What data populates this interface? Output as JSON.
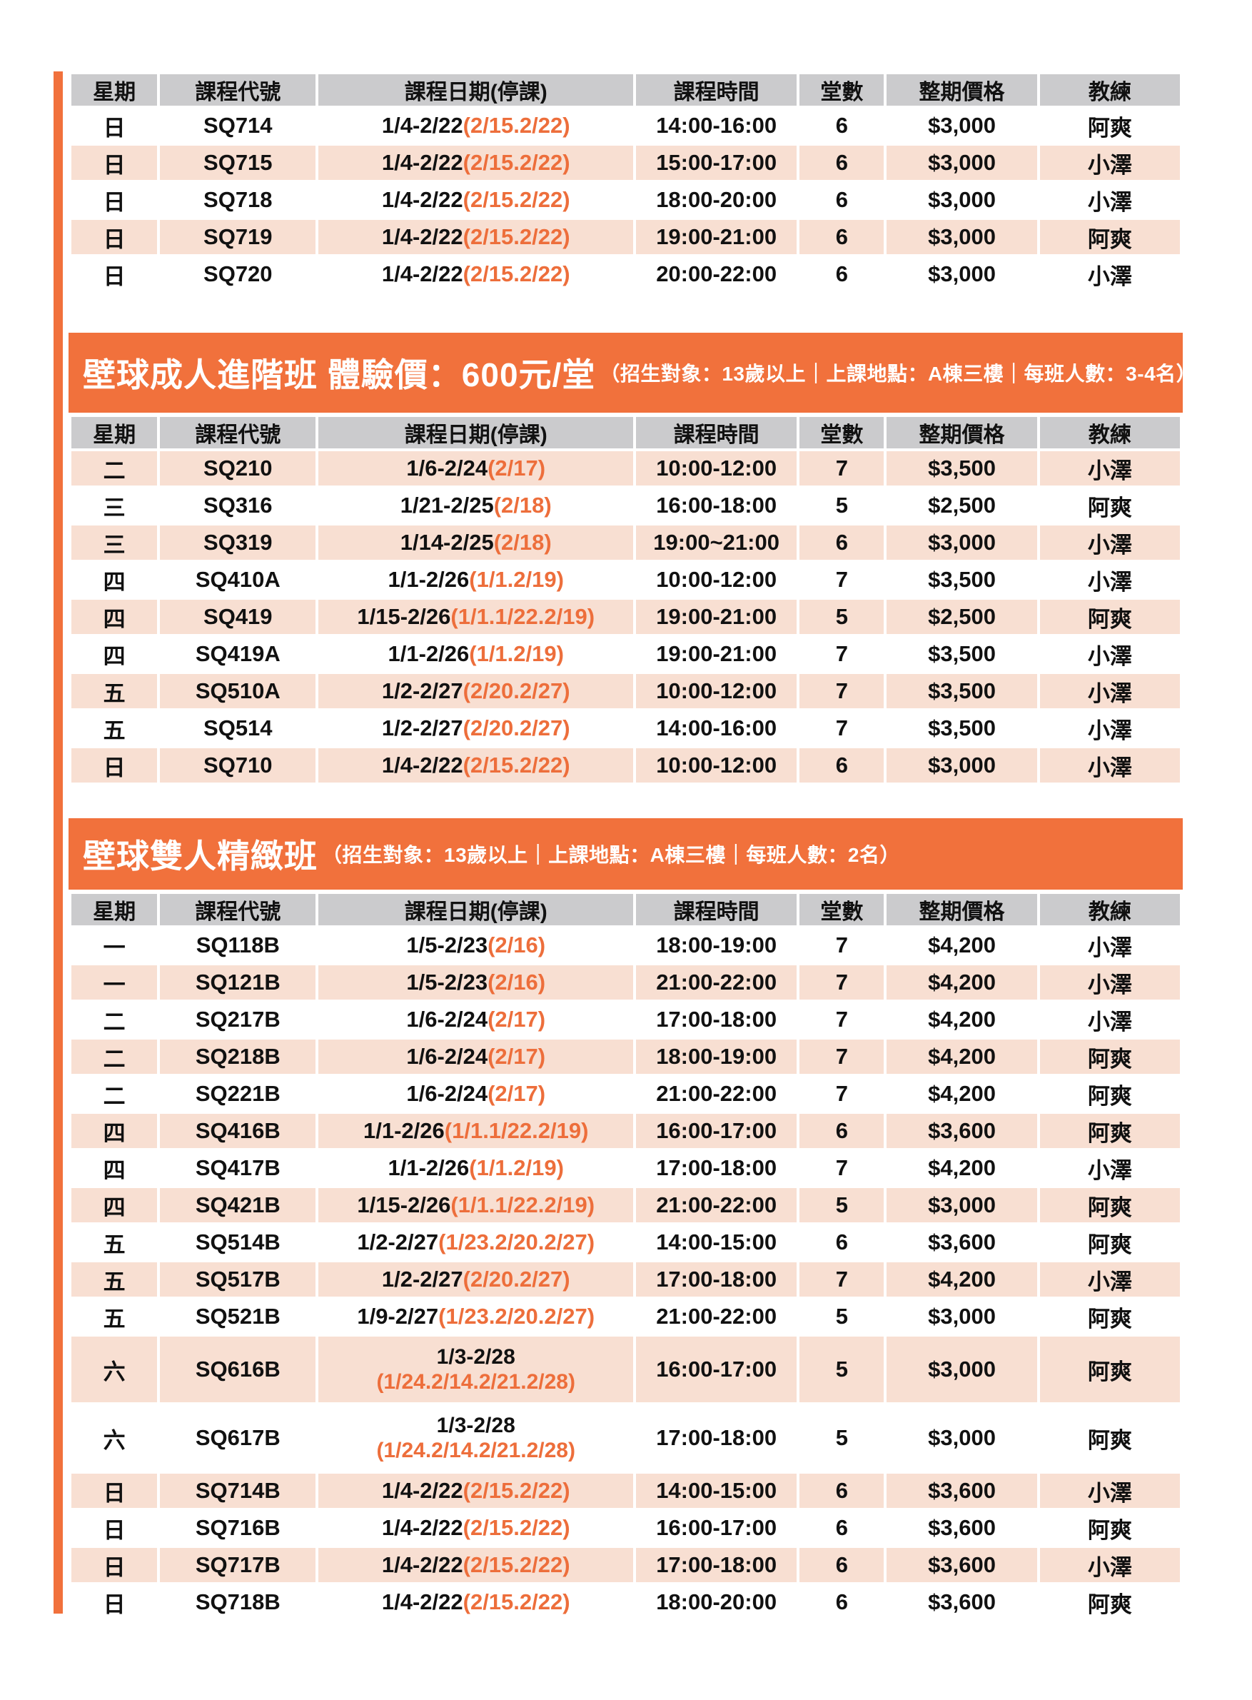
{
  "colors": {
    "banner_orange": "#F1713C",
    "accent_orange": "#ED6E3B",
    "row_pink": "#F8DFD2",
    "header_gray": "#CBCBCD",
    "left_bar_orange": "#F1713C"
  },
  "columns": [
    "星期",
    "課程代號",
    "課程日期(停課)",
    "課程時間",
    "堂數",
    "整期價格",
    "教練"
  ],
  "sections": [
    {
      "banner": null,
      "first_row_pink": false,
      "rows": [
        {
          "day": "日",
          "code": "SQ714",
          "date": "1/4-2/22",
          "cancel": "(2/15.2/22)",
          "time": "14:00-16:00",
          "sessions": "6",
          "price": "$3,000",
          "coach": "阿爽",
          "two_line": false
        },
        {
          "day": "日",
          "code": "SQ715",
          "date": "1/4-2/22",
          "cancel": "(2/15.2/22)",
          "time": "15:00-17:00",
          "sessions": "6",
          "price": "$3,000",
          "coach": "小澤",
          "two_line": false
        },
        {
          "day": "日",
          "code": "SQ718",
          "date": "1/4-2/22",
          "cancel": "(2/15.2/22)",
          "time": "18:00-20:00",
          "sessions": "6",
          "price": "$3,000",
          "coach": "小澤",
          "two_line": false
        },
        {
          "day": "日",
          "code": "SQ719",
          "date": "1/4-2/22",
          "cancel": "(2/15.2/22)",
          "time": "19:00-21:00",
          "sessions": "6",
          "price": "$3,000",
          "coach": "阿爽",
          "two_line": false
        },
        {
          "day": "日",
          "code": "SQ720",
          "date": "1/4-2/22",
          "cancel": "(2/15.2/22)",
          "time": "20:00-22:00",
          "sessions": "6",
          "price": "$3,000",
          "coach": "小澤",
          "two_line": false
        }
      ]
    },
    {
      "banner": {
        "title": "壁球成人進階班 體驗價：600元/堂",
        "details": "（招生對象：13歲以上｜上課地點：A棟三樓｜每班人數：3-4名）"
      },
      "first_row_pink": true,
      "rows": [
        {
          "day": "二",
          "code": "SQ210",
          "date": "1/6-2/24",
          "cancel": "(2/17)",
          "time": "10:00-12:00",
          "sessions": "7",
          "price": "$3,500",
          "coach": "小澤",
          "two_line": false
        },
        {
          "day": "三",
          "code": "SQ316",
          "date": "1/21-2/25",
          "cancel": "(2/18)",
          "time": "16:00-18:00",
          "sessions": "5",
          "price": "$2,500",
          "coach": "阿爽",
          "two_line": false
        },
        {
          "day": "三",
          "code": "SQ319",
          "date": "1/14-2/25",
          "cancel": "(2/18)",
          "time": "19:00~21:00",
          "sessions": "6",
          "price": "$3,000",
          "coach": "小澤",
          "two_line": false
        },
        {
          "day": "四",
          "code": "SQ410A",
          "date": "1/1-2/26",
          "cancel": "(1/1.2/19)",
          "time": "10:00-12:00",
          "sessions": "7",
          "price": "$3,500",
          "coach": "小澤",
          "two_line": false
        },
        {
          "day": "四",
          "code": "SQ419",
          "date": "1/15-2/26",
          "cancel": "(1/1.1/22.2/19)",
          "time": "19:00-21:00",
          "sessions": "5",
          "price": "$2,500",
          "coach": "阿爽",
          "two_line": false
        },
        {
          "day": "四",
          "code": "SQ419A",
          "date": "1/1-2/26",
          "cancel": "(1/1.2/19)",
          "time": "19:00-21:00",
          "sessions": "7",
          "price": "$3,500",
          "coach": "小澤",
          "two_line": false
        },
        {
          "day": "五",
          "code": "SQ510A",
          "date": "1/2-2/27",
          "cancel": "(2/20.2/27)",
          "time": "10:00-12:00",
          "sessions": "7",
          "price": "$3,500",
          "coach": "小澤",
          "two_line": false
        },
        {
          "day": "五",
          "code": "SQ514",
          "date": "1/2-2/27",
          "cancel": "(2/20.2/27)",
          "time": "14:00-16:00",
          "sessions": "7",
          "price": "$3,500",
          "coach": "小澤",
          "two_line": false
        },
        {
          "day": "日",
          "code": "SQ710",
          "date": "1/4-2/22",
          "cancel": "(2/15.2/22)",
          "time": "10:00-12:00",
          "sessions": "6",
          "price": "$3,000",
          "coach": "小澤",
          "two_line": false
        }
      ]
    },
    {
      "banner": {
        "title": "壁球雙人精緻班",
        "details": "（招生對象：13歲以上｜上課地點：A棟三樓｜每班人數：2名）"
      },
      "first_row_pink": false,
      "rows": [
        {
          "day": "一",
          "code": "SQ118B",
          "date": "1/5-2/23",
          "cancel": "(2/16)",
          "time": "18:00-19:00",
          "sessions": "7",
          "price": "$4,200",
          "coach": "小澤",
          "two_line": false
        },
        {
          "day": "一",
          "code": "SQ121B",
          "date": "1/5-2/23",
          "cancel": "(2/16)",
          "time": "21:00-22:00",
          "sessions": "7",
          "price": "$4,200",
          "coach": "小澤",
          "two_line": false
        },
        {
          "day": "二",
          "code": "SQ217B",
          "date": "1/6-2/24",
          "cancel": "(2/17)",
          "time": "17:00-18:00",
          "sessions": "7",
          "price": "$4,200",
          "coach": "小澤",
          "two_line": false
        },
        {
          "day": "二",
          "code": "SQ218B",
          "date": "1/6-2/24",
          "cancel": "(2/17)",
          "time": "18:00-19:00",
          "sessions": "7",
          "price": "$4,200",
          "coach": "阿爽",
          "two_line": false
        },
        {
          "day": "二",
          "code": "SQ221B",
          "date": "1/6-2/24",
          "cancel": "(2/17)",
          "time": "21:00-22:00",
          "sessions": "7",
          "price": "$4,200",
          "coach": "阿爽",
          "two_line": false
        },
        {
          "day": "四",
          "code": "SQ416B",
          "date": "1/1-2/26",
          "cancel": "(1/1.1/22.2/19)",
          "time": "16:00-17:00",
          "sessions": "6",
          "price": "$3,600",
          "coach": "阿爽",
          "two_line": false
        },
        {
          "day": "四",
          "code": "SQ417B",
          "date": "1/1-2/26",
          "cancel": "(1/1.2/19)",
          "time": "17:00-18:00",
          "sessions": "7",
          "price": "$4,200",
          "coach": "小澤",
          "two_line": false
        },
        {
          "day": "四",
          "code": "SQ421B",
          "date": "1/15-2/26",
          "cancel": "(1/1.1/22.2/19)",
          "time": "21:00-22:00",
          "sessions": "5",
          "price": "$3,000",
          "coach": "阿爽",
          "two_line": false
        },
        {
          "day": "五",
          "code": "SQ514B",
          "date": "1/2-2/27",
          "cancel": "(1/23.2/20.2/27)",
          "time": "14:00-15:00",
          "sessions": "6",
          "price": "$3,600",
          "coach": "阿爽",
          "two_line": false
        },
        {
          "day": "五",
          "code": "SQ517B",
          "date": "1/2-2/27",
          "cancel": "(2/20.2/27)",
          "time": "17:00-18:00",
          "sessions": "7",
          "price": "$4,200",
          "coach": "小澤",
          "two_line": false
        },
        {
          "day": "五",
          "code": "SQ521B",
          "date": "1/9-2/27",
          "cancel": "(1/23.2/20.2/27)",
          "time": "21:00-22:00",
          "sessions": "5",
          "price": "$3,000",
          "coach": "阿爽",
          "two_line": false
        },
        {
          "day": "六",
          "code": "SQ616B",
          "date": "1/3-2/28",
          "cancel": "(1/24.2/14.2/21.2/28)",
          "time": "16:00-17:00",
          "sessions": "5",
          "price": "$3,000",
          "coach": "阿爽",
          "two_line": true
        },
        {
          "day": "六",
          "code": "SQ617B",
          "date": "1/3-2/28",
          "cancel": "(1/24.2/14.2/21.2/28)",
          "time": "17:00-18:00",
          "sessions": "5",
          "price": "$3,000",
          "coach": "阿爽",
          "two_line": true
        },
        {
          "day": "日",
          "code": "SQ714B",
          "date": "1/4-2/22",
          "cancel": "(2/15.2/22)",
          "time": "14:00-15:00",
          "sessions": "6",
          "price": "$3,600",
          "coach": "小澤",
          "two_line": false
        },
        {
          "day": "日",
          "code": "SQ716B",
          "date": "1/4-2/22",
          "cancel": "(2/15.2/22)",
          "time": "16:00-17:00",
          "sessions": "6",
          "price": "$3,600",
          "coach": "阿爽",
          "two_line": false
        },
        {
          "day": "日",
          "code": "SQ717B",
          "date": "1/4-2/22",
          "cancel": "(2/15.2/22)",
          "time": "17:00-18:00",
          "sessions": "6",
          "price": "$3,600",
          "coach": "小澤",
          "two_line": false
        },
        {
          "day": "日",
          "code": "SQ718B",
          "date": "1/4-2/22",
          "cancel": "(2/15.2/22)",
          "time": "18:00-20:00",
          "sessions": "6",
          "price": "$3,600",
          "coach": "阿爽",
          "two_line": false
        }
      ]
    }
  ]
}
